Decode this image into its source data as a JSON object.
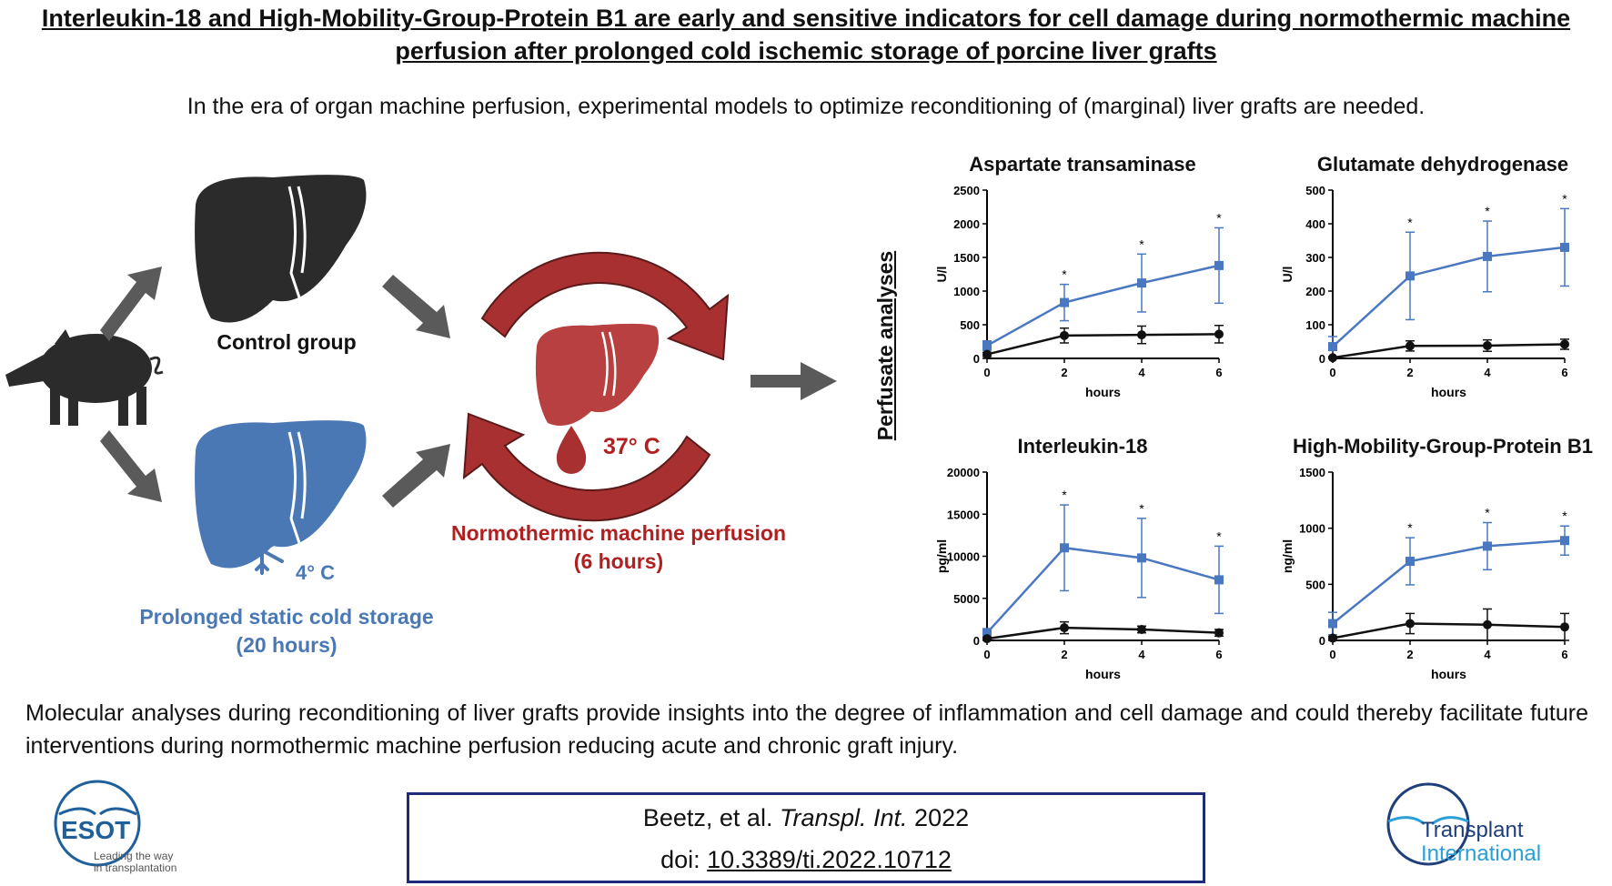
{
  "title": "Interleukin-18 and High-Mobility-Group-Protein B1 are early and sensitive indicators for cell damage during normothermic machine perfusion after prolonged cold ischemic storage of porcine liver grafts",
  "subtitle": "In the era of organ machine perfusion, experimental models to optimize reconditioning of (marginal) liver grafts are needed.",
  "diagram": {
    "control_label": "Control group",
    "cold_temp": "4° C",
    "cold_label_line1": "Prolonged static cold storage",
    "cold_label_line2": "(20 hours)",
    "nmp_temp": "37° C",
    "nmp_label_line1": "Normothermic machine perfusion",
    "nmp_label_line2": "(6 hours)",
    "perfusate_label": "Perfusate analyses",
    "colors": {
      "control_liver": "#2b2b2b",
      "cold_liver": "#4a78b5",
      "nmp": "#a83030",
      "arrow": "#5a5a5a"
    },
    "icons": [
      "pig-icon",
      "liver-icon",
      "snowflake-icon",
      "droplet-icon",
      "circular-arrows-icon"
    ]
  },
  "chart_data": [
    {
      "type": "line",
      "title": "Aspartate transaminase",
      "xlabel": "hours",
      "ylabel": "U/l",
      "x": [
        0,
        2,
        4,
        6
      ],
      "xticks": [
        "0",
        "2",
        "4",
        "6"
      ],
      "yticks": [
        "0",
        "500",
        "1000",
        "1500",
        "2000",
        "2500"
      ],
      "ylim": [
        0,
        2500
      ],
      "series": [
        {
          "color": "#4a78c0",
          "values": [
            190,
            830,
            1120,
            1380
          ],
          "errors": [
            70,
            270,
            430,
            560
          ],
          "significance": [
            "",
            "*",
            "*",
            "*"
          ]
        },
        {
          "color": "#111111",
          "values": [
            60,
            340,
            350,
            360
          ],
          "errors": [
            30,
            110,
            130,
            130
          ]
        }
      ]
    },
    {
      "type": "line",
      "title": "Glutamate dehydrogenase",
      "xlabel": "hours",
      "ylabel": "U/l",
      "x": [
        0,
        2,
        4,
        6
      ],
      "xticks": [
        "0",
        "2",
        "4",
        "6"
      ],
      "yticks": [
        "0",
        "100",
        "200",
        "300",
        "400",
        "500"
      ],
      "ylim": [
        0,
        500
      ],
      "series": [
        {
          "color": "#4a78c0",
          "values": [
            35,
            245,
            303,
            330
          ],
          "errors": [
            30,
            130,
            105,
            115
          ],
          "significance": [
            "",
            "*",
            "*",
            "*"
          ]
        },
        {
          "color": "#111111",
          "values": [
            2,
            37,
            38,
            42
          ],
          "errors": [
            2,
            15,
            17,
            15
          ]
        }
      ]
    },
    {
      "type": "line",
      "title": "Interleukin-18",
      "xlabel": "hours",
      "ylabel": "pg/ml",
      "x": [
        0,
        2,
        4,
        6
      ],
      "xticks": [
        "0",
        "2",
        "4",
        "6"
      ],
      "yticks": [
        "0",
        "5000",
        "10000",
        "15000",
        "20000"
      ],
      "ylim": [
        0,
        20000
      ],
      "series": [
        {
          "color": "#4a78c0",
          "values": [
            900,
            11000,
            9800,
            7200
          ],
          "errors": [
            500,
            5100,
            4700,
            4000
          ],
          "significance": [
            "",
            "*",
            "*",
            "*"
          ]
        },
        {
          "color": "#111111",
          "values": [
            200,
            1500,
            1300,
            900
          ],
          "errors": [
            150,
            700,
            400,
            400
          ]
        }
      ]
    },
    {
      "type": "line",
      "title": "High-Mobility-Group-Protein B1",
      "xlabel": "hours",
      "ylabel": "ng/ml",
      "x": [
        0,
        2,
        4,
        6
      ],
      "xticks": [
        "0",
        "2",
        "4",
        "6"
      ],
      "yticks": [
        "0",
        "500",
        "1000",
        "1500"
      ],
      "ylim": [
        0,
        1500
      ],
      "series": [
        {
          "color": "#4a78c0",
          "values": [
            150,
            705,
            840,
            890
          ],
          "errors": [
            100,
            210,
            210,
            130
          ],
          "significance": [
            "",
            "*",
            "*",
            "*"
          ]
        },
        {
          "color": "#111111",
          "values": [
            20,
            150,
            140,
            120
          ],
          "errors": [
            15,
            90,
            140,
            120
          ]
        }
      ]
    }
  ],
  "conclusion": "Molecular analyses during reconditioning of liver grafts provide insights into the degree of inflammation and cell damage and could thereby facilitate future interventions during normothermic machine perfusion reducing acute and chronic graft injury.",
  "citation": {
    "authors": "Beetz, et al.",
    "journal": "Transpl. Int.",
    "year": "2022",
    "doi_prefix": "doi:",
    "doi": "10.3389/ti.2022.10712"
  },
  "logos": {
    "esot_name": "ESOT",
    "esot_tagline_1": "Leading the way",
    "esot_tagline_2": "in transplantation",
    "ti_line1": "Transplant",
    "ti_line2": "International"
  }
}
